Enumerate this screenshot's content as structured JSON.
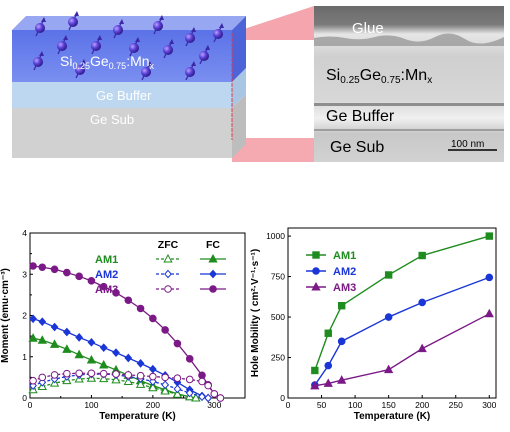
{
  "schematic": {
    "film_label_main": "Si",
    "film_sub1": "0.25",
    "film_mid": "Ge",
    "film_sub2": "0.75",
    "film_tail": ":Mn",
    "film_sub3": "x",
    "buffer_label": "Ge Buffer",
    "substrate_label": "Ge Sub"
  },
  "tem": {
    "glue_label": "Glue",
    "film_label_main": "Si",
    "film_sub1": "0.25",
    "film_mid": "Ge",
    "film_sub2": "0.75",
    "film_tail": ":Mn",
    "film_sub3": "x",
    "buffer_label": "Ge Buffer",
    "substrate_label": "Ge Sub",
    "scale_bar": "100 nm"
  },
  "colors": {
    "AM1": "#1e8c1e",
    "AM2": "#1a36d6",
    "AM3": "#7b1a86"
  },
  "chart_data": [
    {
      "type": "line",
      "xlabel": "Temperature (K)",
      "ylabel": "Moment (emu·cm⁻³)",
      "xlim": [
        0,
        350
      ],
      "ylim": [
        0,
        4
      ],
      "xticks": [
        "0",
        "100",
        "200",
        "300"
      ],
      "yticks": [
        "0",
        "1",
        "2",
        "3",
        "4"
      ],
      "legend_headers": [
        "ZFC",
        "FC"
      ],
      "series": [
        {
          "name": "AM1",
          "mode": "FC",
          "x": [
            5,
            20,
            40,
            60,
            80,
            100,
            120,
            140,
            160,
            180,
            200,
            220,
            240,
            260,
            270
          ],
          "y": [
            1.45,
            1.4,
            1.3,
            1.18,
            1.05,
            0.92,
            0.8,
            0.68,
            0.55,
            0.42,
            0.3,
            0.2,
            0.1,
            0.03,
            0.0
          ]
        },
        {
          "name": "AM1",
          "mode": "ZFC",
          "x": [
            5,
            20,
            40,
            60,
            80,
            100,
            120,
            140,
            160,
            180,
            200,
            220,
            240,
            260,
            270
          ],
          "y": [
            0.2,
            0.28,
            0.36,
            0.42,
            0.46,
            0.48,
            0.47,
            0.44,
            0.4,
            0.33,
            0.25,
            0.17,
            0.09,
            0.03,
            0.0
          ]
        },
        {
          "name": "AM2",
          "mode": "FC",
          "x": [
            5,
            20,
            40,
            60,
            80,
            100,
            120,
            140,
            160,
            180,
            200,
            220,
            240,
            260,
            280,
            290
          ],
          "y": [
            1.92,
            1.85,
            1.72,
            1.6,
            1.47,
            1.35,
            1.22,
            1.1,
            0.97,
            0.84,
            0.7,
            0.55,
            0.38,
            0.2,
            0.05,
            0.0
          ]
        },
        {
          "name": "AM2",
          "mode": "ZFC",
          "x": [
            5,
            20,
            40,
            60,
            80,
            100,
            120,
            140,
            160,
            180,
            200,
            220,
            240,
            260,
            280,
            290
          ],
          "y": [
            0.3,
            0.38,
            0.46,
            0.52,
            0.56,
            0.58,
            0.58,
            0.56,
            0.52,
            0.47,
            0.4,
            0.32,
            0.22,
            0.12,
            0.03,
            0.0
          ]
        },
        {
          "name": "AM3",
          "mode": "FC",
          "x": [
            5,
            20,
            40,
            60,
            80,
            100,
            120,
            140,
            160,
            180,
            200,
            220,
            240,
            260,
            280,
            290,
            300,
            310
          ],
          "y": [
            3.2,
            3.17,
            3.12,
            3.04,
            2.95,
            2.84,
            2.7,
            2.55,
            2.37,
            2.17,
            1.93,
            1.65,
            1.32,
            0.95,
            0.55,
            0.32,
            0.1,
            0.0
          ]
        },
        {
          "name": "AM3",
          "mode": "ZFC",
          "x": [
            5,
            20,
            40,
            60,
            80,
            100,
            120,
            140,
            160,
            180,
            200,
            220,
            240,
            260,
            280,
            290,
            300,
            310
          ],
          "y": [
            0.42,
            0.5,
            0.56,
            0.59,
            0.6,
            0.6,
            0.59,
            0.58,
            0.56,
            0.54,
            0.52,
            0.5,
            0.48,
            0.45,
            0.4,
            0.3,
            0.1,
            0.0
          ]
        }
      ]
    },
    {
      "type": "line",
      "xlabel": "Temperature (K)",
      "ylabel": "Hole Mobility ( cm²·V⁻¹·s⁻¹)",
      "xlim": [
        0,
        310
      ],
      "ylim": [
        0,
        1050
      ],
      "xticks": [
        "0",
        "50",
        "100",
        "150",
        "200",
        "250",
        "300"
      ],
      "yticks": [
        "0",
        "250",
        "500",
        "750",
        "1000"
      ],
      "series": [
        {
          "name": "AM1",
          "marker": "square",
          "x": [
            40,
            60,
            80,
            150,
            200,
            300
          ],
          "y": [
            170,
            400,
            570,
            760,
            880,
            1000
          ]
        },
        {
          "name": "AM2",
          "marker": "circle",
          "x": [
            40,
            60,
            80,
            150,
            200,
            300
          ],
          "y": [
            80,
            200,
            350,
            500,
            590,
            745
          ]
        },
        {
          "name": "AM3",
          "marker": "triangle",
          "x": [
            40,
            60,
            80,
            150,
            200,
            300
          ],
          "y": [
            75,
            90,
            110,
            175,
            305,
            520
          ]
        }
      ]
    }
  ]
}
